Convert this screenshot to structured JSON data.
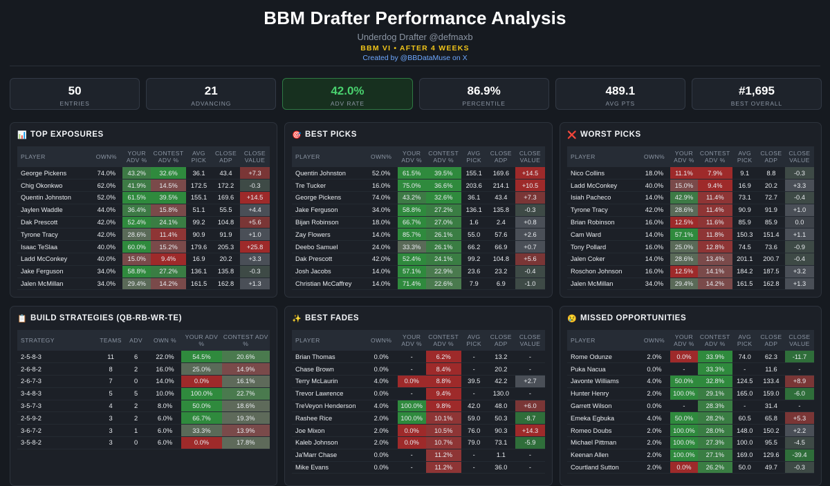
{
  "header": {
    "title": "BBM Drafter Performance Analysis",
    "subtitle": "Underdog Drafter @defmaxb",
    "week": "BBM VI • AFTER 4 WEEKS",
    "credit": "Created by @BBDataMuse on X"
  },
  "stats": [
    {
      "value": "50",
      "label": "ENTRIES"
    },
    {
      "value": "21",
      "label": "ADVANCING"
    },
    {
      "value": "42.0%",
      "label": "ADV RATE"
    },
    {
      "value": "86.9%",
      "label": "PERCENTILE"
    },
    {
      "value": "489.1",
      "label": "AVG PTS"
    },
    {
      "value": "#1,695",
      "label": "BEST OVERALL"
    }
  ],
  "colors": {
    "accent_green": "#49d16e",
    "accent_yellow": "#f0c419",
    "accent_blue": "#6ea8ff",
    "cell_green_strong": "#2f8a3d",
    "cell_red_strong": "#9e2a2a"
  },
  "player_headers": [
    "PLAYER",
    "OWN%",
    "YOUR ADV %",
    "CONTEST ADV %",
    "AVG PICK",
    "CLOSE ADP",
    "CLOSE VALUE"
  ],
  "panels": {
    "top_exposures": {
      "icon": "📊",
      "icon_name": "bar-chart-icon",
      "title": "TOP EXPOSURES",
      "rows": [
        [
          "George Pickens",
          "74.0%",
          "43.2%",
          "32.6%",
          "36.1",
          "43.4",
          "+7.3"
        ],
        [
          "Chig Okonkwo",
          "62.0%",
          "41.9%",
          "14.5%",
          "172.5",
          "172.2",
          "-0.3"
        ],
        [
          "Quentin Johnston",
          "52.0%",
          "61.5%",
          "39.5%",
          "155.1",
          "169.6",
          "+14.5"
        ],
        [
          "Jaylen Waddle",
          "44.0%",
          "36.4%",
          "15.8%",
          "51.1",
          "55.5",
          "+4.4"
        ],
        [
          "Dak Prescott",
          "42.0%",
          "52.4%",
          "24.1%",
          "99.2",
          "104.8",
          "+5.6"
        ],
        [
          "Tyrone Tracy",
          "42.0%",
          "28.6%",
          "11.4%",
          "90.9",
          "91.9",
          "+1.0"
        ],
        [
          "Isaac TeSlaa",
          "40.0%",
          "60.0%",
          "15.2%",
          "179.6",
          "205.3",
          "+25.8"
        ],
        [
          "Ladd McConkey",
          "40.0%",
          "15.0%",
          "9.4%",
          "16.9",
          "20.2",
          "+3.3"
        ],
        [
          "Jake Ferguson",
          "34.0%",
          "58.8%",
          "27.2%",
          "136.1",
          "135.8",
          "-0.3"
        ],
        [
          "Jalen McMillan",
          "34.0%",
          "29.4%",
          "14.2%",
          "161.5",
          "162.8",
          "+1.3"
        ]
      ]
    },
    "best_picks": {
      "icon": "🎯",
      "icon_name": "target-icon",
      "title": "BEST PICKS",
      "rows": [
        [
          "Quentin Johnston",
          "52.0%",
          "61.5%",
          "39.5%",
          "155.1",
          "169.6",
          "+14.5"
        ],
        [
          "Tre Tucker",
          "16.0%",
          "75.0%",
          "36.6%",
          "203.6",
          "214.1",
          "+10.5"
        ],
        [
          "George Pickens",
          "74.0%",
          "43.2%",
          "32.6%",
          "36.1",
          "43.4",
          "+7.3"
        ],
        [
          "Jake Ferguson",
          "34.0%",
          "58.8%",
          "27.2%",
          "136.1",
          "135.8",
          "-0.3"
        ],
        [
          "Bijan Robinson",
          "18.0%",
          "66.7%",
          "27.0%",
          "1.6",
          "2.4",
          "+0.8"
        ],
        [
          "Zay Flowers",
          "14.0%",
          "85.7%",
          "26.1%",
          "55.0",
          "57.6",
          "+2.6"
        ],
        [
          "Deebo Samuel",
          "24.0%",
          "33.3%",
          "26.1%",
          "66.2",
          "66.9",
          "+0.7"
        ],
        [
          "Dak Prescott",
          "42.0%",
          "52.4%",
          "24.1%",
          "99.2",
          "104.8",
          "+5.6"
        ],
        [
          "Josh Jacobs",
          "14.0%",
          "57.1%",
          "22.9%",
          "23.6",
          "23.2",
          "-0.4"
        ],
        [
          "Christian McCaffrey",
          "14.0%",
          "71.4%",
          "22.6%",
          "7.9",
          "6.9",
          "-1.0"
        ]
      ]
    },
    "worst_picks": {
      "icon": "❌",
      "icon_name": "cross-mark-icon",
      "title": "WORST PICKS",
      "rows": [
        [
          "Nico Collins",
          "18.0%",
          "11.1%",
          "7.9%",
          "9.1",
          "8.8",
          "-0.3"
        ],
        [
          "Ladd McConkey",
          "40.0%",
          "15.0%",
          "9.4%",
          "16.9",
          "20.2",
          "+3.3"
        ],
        [
          "Isiah Pacheco",
          "14.0%",
          "42.9%",
          "11.4%",
          "73.1",
          "72.7",
          "-0.4"
        ],
        [
          "Tyrone Tracy",
          "42.0%",
          "28.6%",
          "11.4%",
          "90.9",
          "91.9",
          "+1.0"
        ],
        [
          "Brian Robinson",
          "16.0%",
          "12.5%",
          "11.6%",
          "85.9",
          "85.9",
          "0.0"
        ],
        [
          "Cam Ward",
          "14.0%",
          "57.1%",
          "11.8%",
          "150.3",
          "151.4",
          "+1.1"
        ],
        [
          "Tony Pollard",
          "16.0%",
          "25.0%",
          "12.8%",
          "74.5",
          "73.6",
          "-0.9"
        ],
        [
          "Jalen Coker",
          "14.0%",
          "28.6%",
          "13.4%",
          "201.1",
          "200.7",
          "-0.4"
        ],
        [
          "Roschon Johnson",
          "16.0%",
          "12.5%",
          "14.1%",
          "184.2",
          "187.5",
          "+3.2"
        ],
        [
          "Jalen McMillan",
          "34.0%",
          "29.4%",
          "14.2%",
          "161.5",
          "162.8",
          "+1.3"
        ]
      ]
    },
    "build_strategies": {
      "icon": "📋",
      "icon_name": "clipboard-icon",
      "title": "BUILD STRATEGIES (QB-RB-WR-TE)",
      "headers": [
        "STRATEGY",
        "TEAMS",
        "ADV",
        "OWN %",
        "YOUR ADV %",
        "CONTEST ADV %"
      ],
      "rows": [
        [
          "2-5-8-3",
          "11",
          "6",
          "22.0%",
          "54.5%",
          "20.6%"
        ],
        [
          "2-6-8-2",
          "8",
          "2",
          "16.0%",
          "25.0%",
          "14.9%"
        ],
        [
          "2-6-7-3",
          "7",
          "0",
          "14.0%",
          "0.0%",
          "16.1%"
        ],
        [
          "3-4-8-3",
          "5",
          "5",
          "10.0%",
          "100.0%",
          "22.7%"
        ],
        [
          "3-5-7-3",
          "4",
          "2",
          "8.0%",
          "50.0%",
          "18.6%"
        ],
        [
          "2-5-9-2",
          "3",
          "2",
          "6.0%",
          "66.7%",
          "19.3%"
        ],
        [
          "3-6-7-2",
          "3",
          "1",
          "6.0%",
          "33.3%",
          "13.9%"
        ],
        [
          "3-5-8-2",
          "3",
          "0",
          "6.0%",
          "0.0%",
          "17.8%"
        ]
      ]
    },
    "best_fades": {
      "icon": "✨",
      "icon_name": "sparkles-icon",
      "title": "BEST FADES",
      "rows": [
        [
          "Brian Thomas",
          "0.0%",
          "-",
          "6.2%",
          "-",
          "13.2",
          "-"
        ],
        [
          "Chase Brown",
          "0.0%",
          "-",
          "8.4%",
          "-",
          "20.2",
          "-"
        ],
        [
          "Terry McLaurin",
          "4.0%",
          "0.0%",
          "8.8%",
          "39.5",
          "42.2",
          "+2.7"
        ],
        [
          "Trevor Lawrence",
          "0.0%",
          "-",
          "9.4%",
          "-",
          "130.0",
          "-"
        ],
        [
          "TreVeyon Henderson",
          "4.0%",
          "100.0%",
          "9.8%",
          "42.0",
          "48.0",
          "+6.0"
        ],
        [
          "Rashee Rice",
          "2.0%",
          "100.0%",
          "10.1%",
          "59.0",
          "50.3",
          "-8.7"
        ],
        [
          "Joe Mixon",
          "2.0%",
          "0.0%",
          "10.5%",
          "76.0",
          "90.3",
          "+14.3"
        ],
        [
          "Kaleb Johnson",
          "2.0%",
          "0.0%",
          "10.7%",
          "79.0",
          "73.1",
          "-5.9"
        ],
        [
          "Ja'Marr Chase",
          "0.0%",
          "-",
          "11.2%",
          "-",
          "1.1",
          "-"
        ],
        [
          "Mike Evans",
          "0.0%",
          "-",
          "11.2%",
          "-",
          "36.0",
          "-"
        ]
      ]
    },
    "missed_opportunities": {
      "icon": "😢",
      "icon_name": "sad-face-icon",
      "title": "MISSED OPPORTUNITIES",
      "rows": [
        [
          "Rome Odunze",
          "2.0%",
          "0.0%",
          "33.9%",
          "74.0",
          "62.3",
          "-11.7"
        ],
        [
          "Puka Nacua",
          "0.0%",
          "-",
          "33.3%",
          "-",
          "11.6",
          "-"
        ],
        [
          "Javonte Williams",
          "4.0%",
          "50.0%",
          "32.8%",
          "124.5",
          "133.4",
          "+8.9"
        ],
        [
          "Hunter Henry",
          "2.0%",
          "100.0%",
          "29.1%",
          "165.0",
          "159.0",
          "-6.0"
        ],
        [
          "Garrett Wilson",
          "0.0%",
          "-",
          "28.3%",
          "-",
          "31.4",
          "-"
        ],
        [
          "Emeka Egbuka",
          "4.0%",
          "50.0%",
          "28.2%",
          "60.5",
          "65.8",
          "+5.3"
        ],
        [
          "Romeo Doubs",
          "2.0%",
          "100.0%",
          "28.0%",
          "148.0",
          "150.2",
          "+2.2"
        ],
        [
          "Michael Pittman",
          "2.0%",
          "100.0%",
          "27.3%",
          "100.0",
          "95.5",
          "-4.5"
        ],
        [
          "Keenan Allen",
          "2.0%",
          "100.0%",
          "27.1%",
          "169.0",
          "129.6",
          "-39.4"
        ],
        [
          "Courtland Sutton",
          "2.0%",
          "0.0%",
          "26.2%",
          "50.0",
          "49.7",
          "-0.3"
        ]
      ]
    }
  }
}
